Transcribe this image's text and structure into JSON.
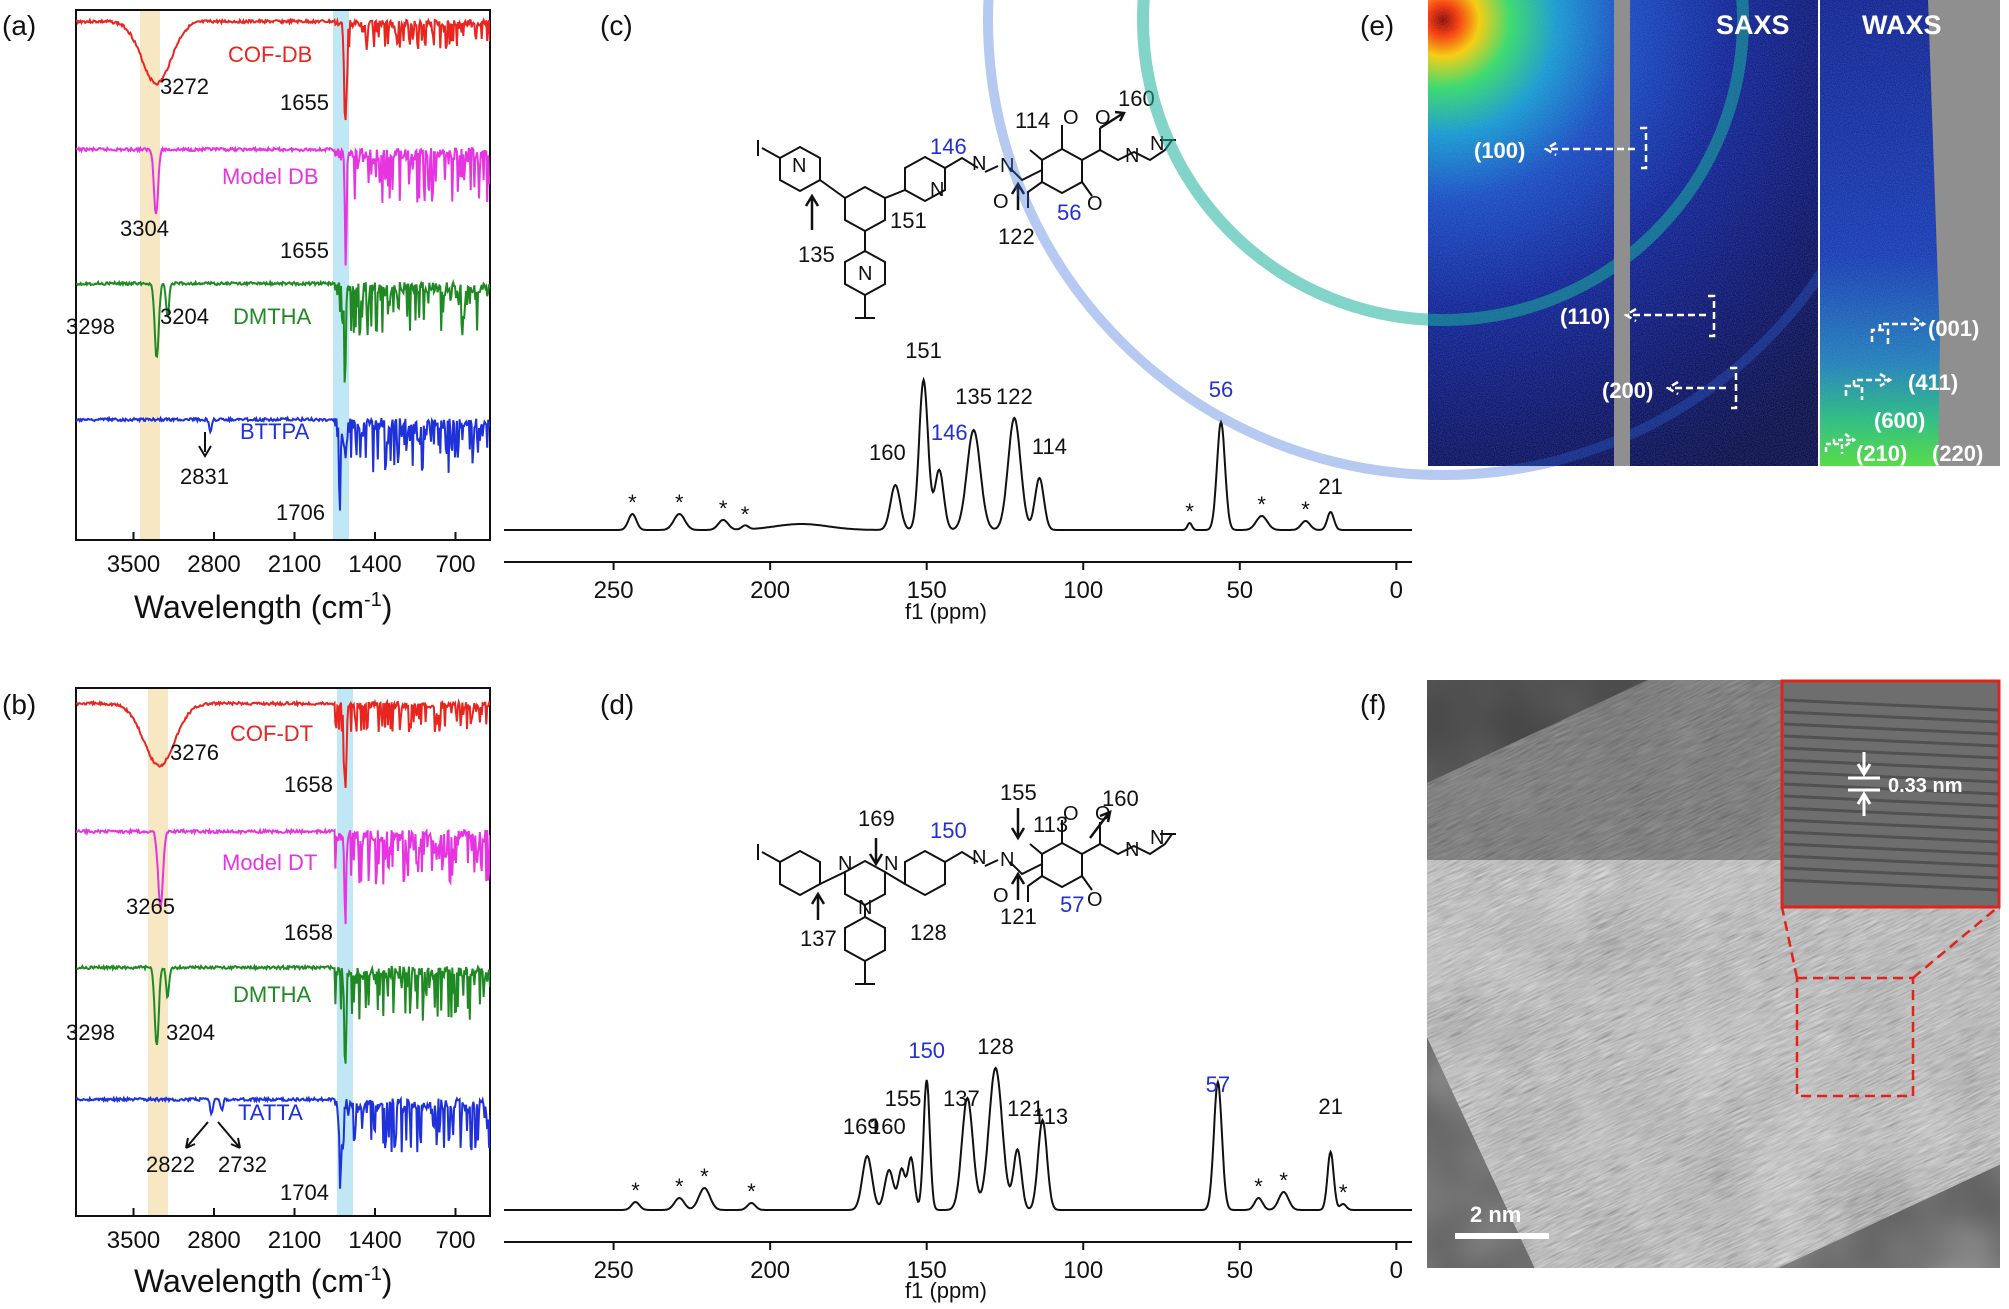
{
  "panels": {
    "a": "(a)",
    "b": "(b)",
    "c": "(c)",
    "d": "(d)",
    "e": "(e)",
    "f": "(f)"
  },
  "chart_data": [
    {
      "panel": "(a)",
      "type": "line",
      "xlabel": "Wavelength (cm",
      "xlabel_sup": "-1",
      "xlabel_end": ")",
      "xlim": [
        4000,
        400
      ],
      "x_reversed": true,
      "xticks": [
        "3500",
        "2800",
        "2100",
        "1400",
        "700"
      ],
      "highlight_bands": [
        {
          "x0": 3460,
          "x1": 3260,
          "color": "#f7e7c3"
        },
        {
          "x0": 1720,
          "x1": 1590,
          "color": "#bfe7f5"
        }
      ],
      "series": [
        {
          "name": "COF-DB",
          "color": "#e8251f",
          "labels": [
            "3272",
            "1655"
          ]
        },
        {
          "name": "Model DB",
          "color": "#e534e0",
          "labels": [
            "3304",
            "1655"
          ]
        },
        {
          "name": "DMTHA",
          "color": "#1f8a24",
          "labels": [
            "3298",
            "3204"
          ]
        },
        {
          "name": "BTTPA",
          "color": "#1f31d8",
          "labels": [
            "2831",
            "1706"
          ]
        }
      ]
    },
    {
      "panel": "(b)",
      "type": "line",
      "xlabel": "Wavelength (cm",
      "xlabel_sup": "-1",
      "xlabel_end": ")",
      "xlim": [
        4000,
        400
      ],
      "x_reversed": true,
      "xticks": [
        "3500",
        "2800",
        "2100",
        "1400",
        "700"
      ],
      "highlight_bands": [
        {
          "x0": 3420,
          "x1": 3220,
          "color": "#f7e7c3"
        },
        {
          "x0": 1720,
          "x1": 1590,
          "color": "#bfe7f5"
        }
      ],
      "series": [
        {
          "name": "COF-DT",
          "color": "#e8251f",
          "labels": [
            "3276",
            "1658"
          ]
        },
        {
          "name": "Model DT",
          "color": "#e534e0",
          "labels": [
            "3265",
            "1658"
          ]
        },
        {
          "name": "DMTHA",
          "color": "#1f8a24",
          "labels": [
            "3298",
            "3204"
          ]
        },
        {
          "name": "TATTA",
          "color": "#1f31d8",
          "labels": [
            "2822",
            "2732",
            "1704"
          ]
        }
      ]
    },
    {
      "panel": "(c)",
      "type": "line",
      "xlabel": "f1 (ppm)",
      "xlim": [
        285,
        -5
      ],
      "x_reversed": true,
      "xticks": [
        "250",
        "200",
        "150",
        "100",
        "50",
        "0"
      ],
      "peaks": [
        {
          "ppm": 160,
          "label": "160",
          "color": "#111"
        },
        {
          "ppm": 151,
          "label": "151",
          "color": "#111"
        },
        {
          "ppm": 146,
          "label": "146",
          "color": "#2230d0"
        },
        {
          "ppm": 135,
          "label": "135",
          "color": "#111"
        },
        {
          "ppm": 122,
          "label": "122",
          "color": "#111"
        },
        {
          "ppm": 114,
          "label": "114",
          "color": "#111"
        },
        {
          "ppm": 56,
          "label": "56",
          "color": "#2230d0"
        },
        {
          "ppm": 21,
          "label": "21",
          "color": "#111"
        }
      ],
      "spinning_sidebands": "*",
      "structure_labels": [
        "146",
        "114",
        "160",
        "56",
        "151",
        "135",
        "122"
      ]
    },
    {
      "panel": "(d)",
      "type": "line",
      "xlabel": "f1 (ppm)",
      "xlim": [
        285,
        -5
      ],
      "x_reversed": true,
      "xticks": [
        "250",
        "200",
        "150",
        "100",
        "50",
        "0"
      ],
      "peaks": [
        {
          "ppm": 169,
          "label": "169",
          "color": "#111"
        },
        {
          "ppm": 160,
          "label": "160",
          "color": "#111"
        },
        {
          "ppm": 155,
          "label": "155",
          "color": "#111"
        },
        {
          "ppm": 150,
          "label": "150",
          "color": "#2230d0"
        },
        {
          "ppm": 137,
          "label": "137",
          "color": "#111"
        },
        {
          "ppm": 128,
          "label": "128",
          "color": "#111"
        },
        {
          "ppm": 121,
          "label": "121",
          "color": "#111"
        },
        {
          "ppm": 113,
          "label": "113",
          "color": "#111"
        },
        {
          "ppm": 57,
          "label": "57",
          "color": "#2230d0"
        },
        {
          "ppm": 21,
          "label": "21",
          "color": "#111"
        }
      ],
      "spinning_sidebands": "*",
      "structure_labels": [
        "155",
        "160",
        "113",
        "169",
        "150",
        "137",
        "128",
        "121",
        "57"
      ]
    }
  ],
  "panel_e": {
    "saxs_title": "SAXS",
    "waxs_title": "WAXS",
    "saxs_reflections": [
      "(100)",
      "(110)",
      "(200)"
    ],
    "waxs_reflections": [
      "(001)",
      "(411)",
      "(600)",
      "(210)",
      "(220)"
    ]
  },
  "panel_f": {
    "inset_spacing": "0.33 nm",
    "scale_bar": "2 nm"
  },
  "colors": {
    "red": "#e8251f",
    "magenta": "#e534e0",
    "green": "#1f8a24",
    "blue": "#1f31d8",
    "nmr_blue": "#2230d0",
    "band_yellow": "#f7e7c3",
    "band_cyan": "#bfe7f5",
    "inset_red": "#e0231f"
  }
}
